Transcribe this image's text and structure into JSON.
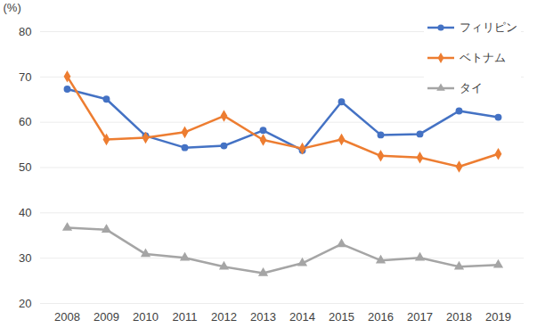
{
  "chart_data": {
    "type": "line",
    "y_label": "(%)",
    "categories": [
      "2008",
      "2009",
      "2010",
      "2011",
      "2012",
      "2013",
      "2014",
      "2015",
      "2016",
      "2017",
      "2018",
      "2019"
    ],
    "series": [
      {
        "name": "フィリピン",
        "color": "#4472c4",
        "marker": "circle",
        "values": [
          67.3,
          65.1,
          57.0,
          54.4,
          54.8,
          58.2,
          53.8,
          64.5,
          57.2,
          57.4,
          62.5,
          61.1
        ]
      },
      {
        "name": "ベトナム",
        "color": "#ed7d31",
        "marker": "diamond",
        "values": [
          70.1,
          56.2,
          56.6,
          57.8,
          61.4,
          56.1,
          54.2,
          56.2,
          52.6,
          52.2,
          50.2,
          53.0
        ]
      },
      {
        "name": "タイ",
        "color": "#a5a5a5",
        "marker": "triangle",
        "values": [
          36.7,
          36.3,
          30.9,
          30.1,
          28.1,
          26.7,
          28.9,
          33.1,
          29.5,
          30.1,
          28.1,
          28.5
        ]
      }
    ],
    "ylim": [
      20,
      80
    ],
    "yticks": [
      20,
      30,
      40,
      50,
      60,
      70,
      80
    ],
    "grid": true,
    "legend": "top-right"
  }
}
